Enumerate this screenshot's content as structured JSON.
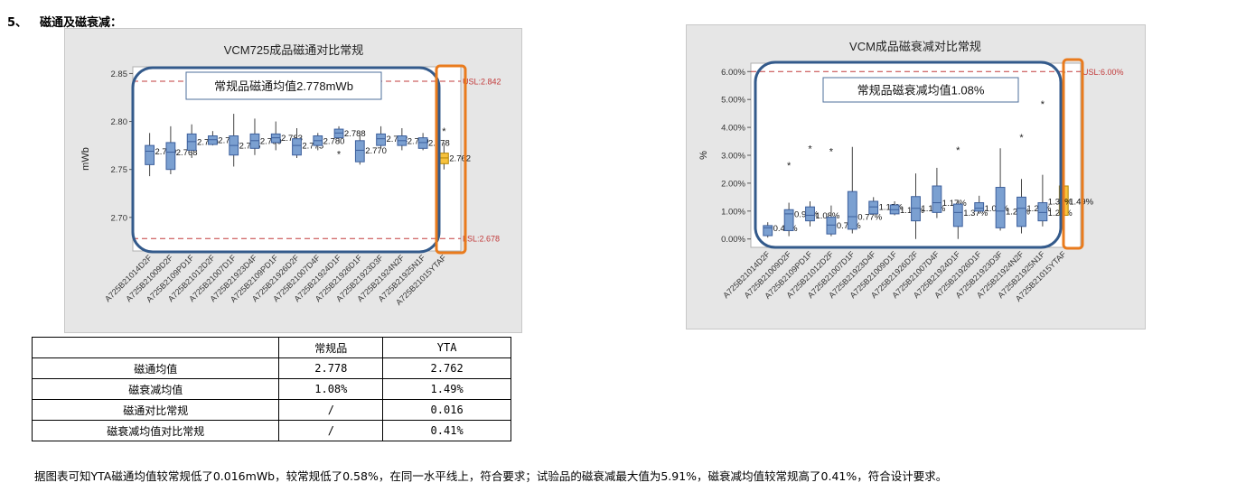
{
  "section": {
    "number": "5、",
    "title": "磁通及磁衰减："
  },
  "chart_data": [
    {
      "type": "box",
      "title": "VCM725成品磁通对比常规",
      "ylabel": "mWb",
      "ylim": [
        2.665,
        2.857
      ],
      "yticks": [
        2.7,
        2.75,
        2.8,
        2.85
      ],
      "ytick_labels": [
        "2.70",
        "2.75",
        "2.80",
        "2.85"
      ],
      "categories": [
        "A725B21014D2F",
        "A725B21009D2F",
        "A725B2109PD1F",
        "A725B21012D2F",
        "A725B21007D1F",
        "A725B21923D4F",
        "A725B2109PD1F",
        "A725B21926D2F",
        "A725B21007D4F",
        "A725B21924D1F",
        "A725B21926D1F",
        "A725B21923D3F",
        "A725B21924N2F",
        "A725B21925N1F",
        "A725B21015YTAF"
      ],
      "series": [
        {
          "values": [
            {
              "min": 2.743,
              "q1": 2.755,
              "median": 2.769,
              "q3": 2.775,
              "max": 2.788,
              "label": "2.769"
            },
            {
              "min": 2.745,
              "q1": 2.75,
              "median": 2.768,
              "q3": 2.778,
              "max": 2.795,
              "label": "2.768"
            },
            {
              "min": 2.762,
              "q1": 2.77,
              "median": 2.779,
              "q3": 2.787,
              "max": 2.797,
              "label": "2.779"
            },
            {
              "min": 2.775,
              "q1": 2.776,
              "median": 2.781,
              "q3": 2.785,
              "max": 2.79,
              "label": "2.781"
            },
            {
              "min": 2.753,
              "q1": 2.765,
              "median": 2.775,
              "q3": 2.785,
              "max": 2.808,
              "label": "2.775"
            },
            {
              "min": 2.765,
              "q1": 2.772,
              "median": 2.78,
              "q3": 2.787,
              "max": 2.803,
              "label": "2.780"
            },
            {
              "min": 2.77,
              "q1": 2.778,
              "median": 2.783,
              "q3": 2.787,
              "max": 2.8,
              "label": "2.783"
            },
            {
              "min": 2.762,
              "q1": 2.765,
              "median": 2.775,
              "q3": 2.782,
              "max": 2.793,
              "label": "2.775"
            },
            {
              "min": 2.77,
              "q1": 2.775,
              "median": 2.78,
              "q3": 2.785,
              "max": 2.788,
              "label": "2.780"
            },
            {
              "min": 2.778,
              "q1": 2.783,
              "median": 2.788,
              "q3": 2.792,
              "max": 2.795,
              "label": "2.788"
            },
            {
              "min": 2.755,
              "q1": 2.758,
              "median": 2.77,
              "q3": 2.78,
              "max": 2.788,
              "label": "2.770"
            },
            {
              "min": 2.772,
              "q1": 2.775,
              "median": 2.782,
              "q3": 2.787,
              "max": 2.795,
              "label": "2.782"
            },
            {
              "min": 2.77,
              "q1": 2.775,
              "median": 2.78,
              "q3": 2.785,
              "max": 2.793,
              "label": "2.780"
            },
            {
              "min": 2.77,
              "q1": 2.772,
              "median": 2.778,
              "q3": 2.783,
              "max": 2.788,
              "label": "2.778"
            },
            {
              "min": 2.75,
              "q1": 2.756,
              "median": 2.762,
              "q3": 2.767,
              "max": 2.778,
              "label": "2.762"
            }
          ]
        }
      ],
      "outliers": [
        {
          "category": 9,
          "value": 2.766
        },
        {
          "category": 14,
          "value": 2.79
        }
      ],
      "highlight_category": 14,
      "reference_lines": [
        {
          "label": "USL:2.842",
          "value": 2.842
        },
        {
          "label": "LSL:2.678",
          "value": 2.678
        }
      ],
      "annotation": "常规品磁通均值2.778mWb",
      "colors": {
        "box": "#7ba0d1",
        "box_edge": "#3c5f9c",
        "highlight": "#f7c23e",
        "highlight_edge": "#b58500",
        "limit": "#c23b3b",
        "group": "#335a8b",
        "frame": "#e97b1d"
      }
    },
    {
      "type": "box",
      "title": "VCM成品磁衰减对比常规",
      "ylabel": "%",
      "ylim": [
        -0.3,
        6.3
      ],
      "yticks": [
        0,
        1,
        2,
        3,
        4,
        5,
        6
      ],
      "ytick_labels": [
        "0.00%",
        "1.00%",
        "2.00%",
        "3.00%",
        "4.00%",
        "5.00%",
        "6.00%"
      ],
      "categories": [
        "A725B21014D2F",
        "A725B21009D2F",
        "A725B2109PD1F",
        "A725B21012D2F",
        "A725B21007D1F",
        "A725B21923D4F",
        "A725B21009D1F",
        "A725B21926D2F",
        "A725B21007D4F",
        "A725B21924D1F",
        "A725B21926D1F",
        "A725B21923D3F",
        "A725B21924N2F",
        "A725B21925N1F",
        "A725B21015YTAF"
      ],
      "series": [
        {
          "values": [
            {
              "min": 0.05,
              "q1": 0.12,
              "median": 0.4,
              "q3": 0.48,
              "max": 0.6,
              "label": "0.40%"
            },
            {
              "min": 0.1,
              "q1": 0.3,
              "median": 0.9,
              "q3": 1.05,
              "max": 1.3,
              "label": "0.90%"
            },
            {
              "min": 0.45,
              "q1": 0.65,
              "median": 0.85,
              "q3": 1.15,
              "max": 1.35,
              "label": "1.08%"
            },
            {
              "min": 0.1,
              "q1": 0.18,
              "median": 0.5,
              "q3": 0.78,
              "max": 1.2,
              "label": "0.77%"
            },
            {
              "min": 0.2,
              "q1": 0.35,
              "median": 0.8,
              "q3": 1.7,
              "max": 3.3,
              "label": "0.77%"
            },
            {
              "min": 0.85,
              "q1": 0.9,
              "median": 1.15,
              "q3": 1.35,
              "max": 1.5,
              "label": "1.15%"
            },
            {
              "min": 0.85,
              "q1": 0.9,
              "median": 1.05,
              "q3": 1.22,
              "max": 1.35,
              "label": "1.12%"
            },
            {
              "min": 0.0,
              "q1": 0.65,
              "median": 1.1,
              "q3": 1.52,
              "max": 2.35,
              "label": "1.10%"
            },
            {
              "min": 0.75,
              "q1": 0.95,
              "median": 1.3,
              "q3": 1.9,
              "max": 2.55,
              "label": "1.17%"
            },
            {
              "min": 0.0,
              "q1": 0.45,
              "median": 0.95,
              "q3": 1.25,
              "max": 1.4,
              "label": "1.37%"
            },
            {
              "min": 0.9,
              "q1": 1.0,
              "median": 1.1,
              "q3": 1.3,
              "max": 1.55,
              "label": "1.04%"
            },
            {
              "min": 0.3,
              "q1": 0.4,
              "median": 1.0,
              "q3": 1.85,
              "max": 3.25,
              "label": "1.23%"
            },
            {
              "min": 0.2,
              "q1": 0.45,
              "median": 1.1,
              "q3": 1.5,
              "max": 2.15,
              "label": "1.21%"
            },
            {
              "min": 0.45,
              "q1": 0.65,
              "median": 0.95,
              "q3": 1.3,
              "max": 2.3,
              "label": "1.20%"
            },
            {
              "min": 0.4,
              "q1": 0.85,
              "median": 1.35,
              "q3": 1.9,
              "max": 2.2,
              "label": "1.49%"
            }
          ]
        }
      ],
      "outliers": [
        {
          "category": 1,
          "value": 2.65
        },
        {
          "category": 2,
          "value": 3.25
        },
        {
          "category": 3,
          "value": 3.15
        },
        {
          "category": 9,
          "value": 3.2
        },
        {
          "category": 12,
          "value": 3.65
        },
        {
          "category": 13,
          "value": 4.85
        },
        {
          "category": 14,
          "value": 5.91
        }
      ],
      "extra_labels": [
        {
          "category": 13,
          "text": "1.39%"
        }
      ],
      "highlight_category": 14,
      "reference_lines": [
        {
          "label": "USL:6.00%",
          "value": 6.0
        }
      ],
      "annotation": "常规品磁衰减均值1.08%",
      "colors": {
        "box": "#7ba0d1",
        "box_edge": "#3c5f9c",
        "highlight": "#f7c23e",
        "highlight_edge": "#b58500",
        "limit": "#c23b3b",
        "group": "#335a8b",
        "frame": "#e97b1d"
      }
    }
  ],
  "table": {
    "headers": [
      "",
      "常规品",
      "YTA"
    ],
    "rows": [
      [
        "磁通均值",
        "2.778",
        "2.762"
      ],
      [
        "磁衰减均值",
        "1.08%",
        "1.49%"
      ],
      [
        "磁通对比常规",
        "/",
        "0.016"
      ],
      [
        "磁衰减均值对比常规",
        "/",
        "0.41%"
      ]
    ]
  },
  "conclusion": "据图表可知YTA磁通均值较常规低了0.016mWb，较常规低了0.58%，在同一水平线上，符合要求；试验品的磁衰减最大值为5.91%，磁衰减均值较常规高了0.41%，符合设计要求。"
}
